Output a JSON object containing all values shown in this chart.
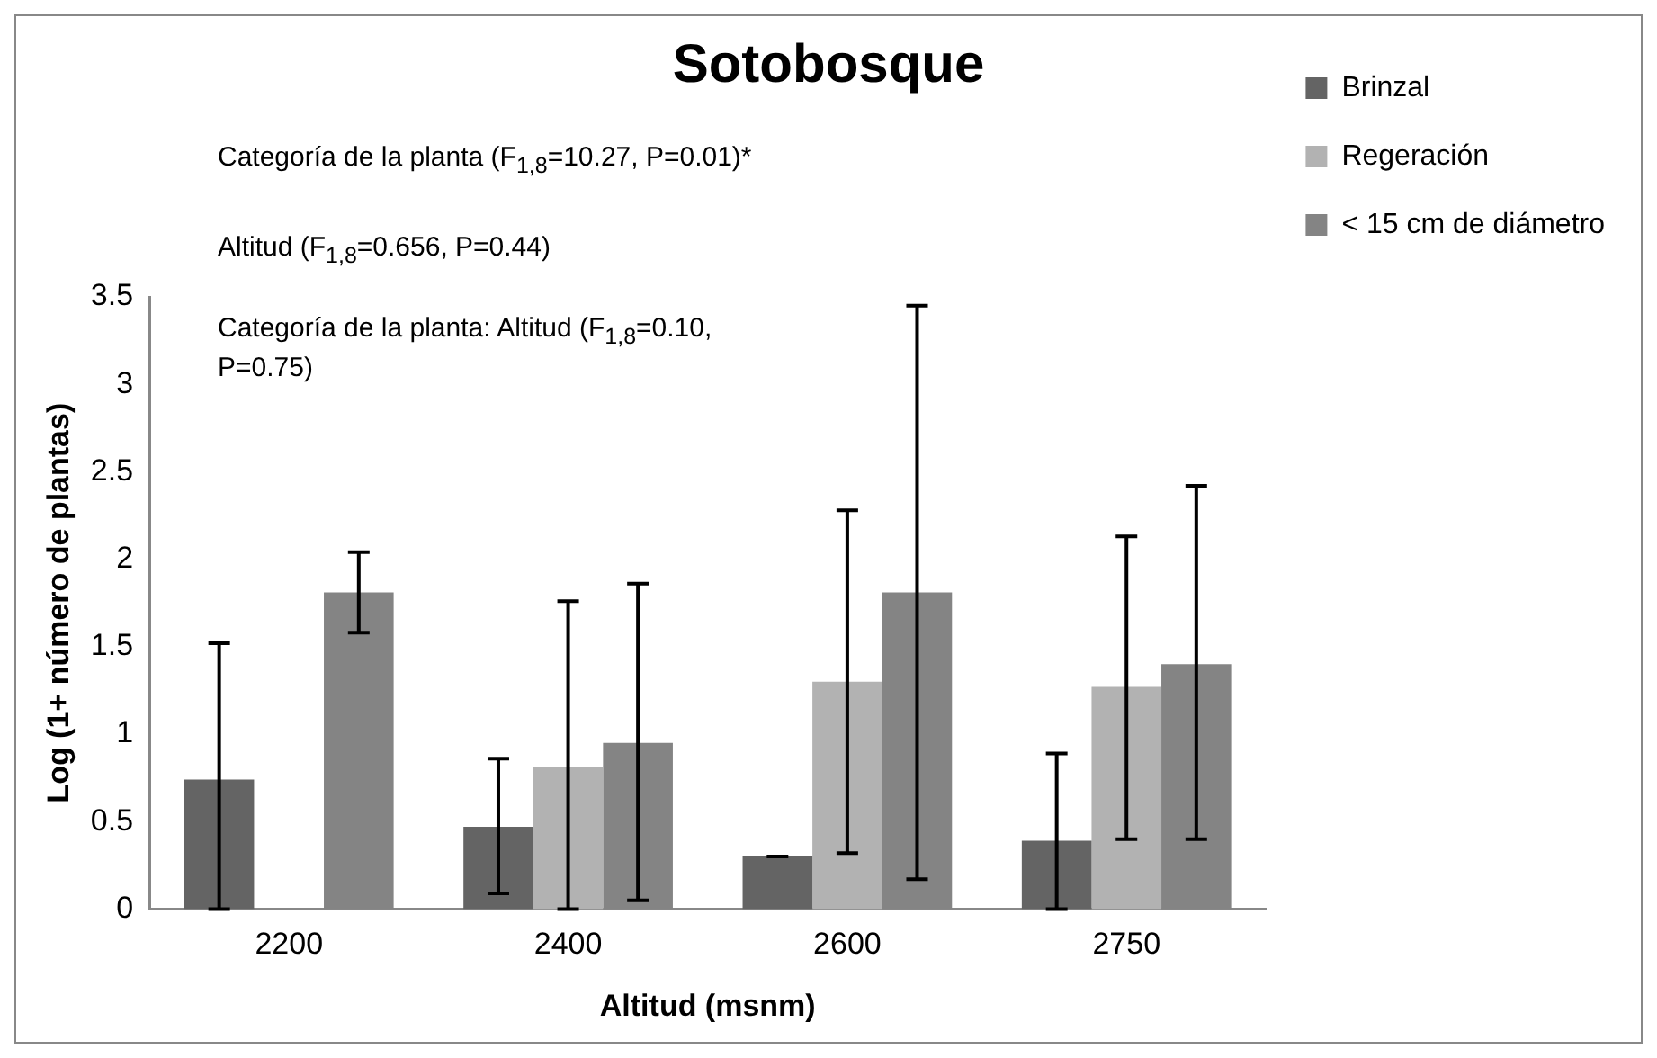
{
  "chart_data": {
    "type": "bar",
    "title": "Sotobosque",
    "xlabel": "Altitud (msnm)",
    "ylabel": "Log (1+ número de plantas)",
    "categories": [
      "2200",
      "2400",
      "2600",
      "2750"
    ],
    "series": [
      {
        "name": "Brinzal",
        "color": "#646464",
        "values": [
          0.74,
          0.47,
          0.3,
          0.39
        ],
        "errors": [
          [
            0,
            1.52
          ],
          [
            0.09,
            0.86
          ],
          [
            0.3,
            0.3
          ],
          [
            0,
            0.89
          ]
        ]
      },
      {
        "name": "Regeración",
        "color": "#b2b2b2",
        "values": [
          0,
          0.81,
          1.3,
          1.27
        ],
        "errors": [
          null,
          [
            0,
            1.76
          ],
          [
            0.32,
            2.28
          ],
          [
            0.4,
            2.13
          ]
        ]
      },
      {
        "name": "< 15 cm de diámetro",
        "color": "#848484",
        "values": [
          1.81,
          0.95,
          1.81,
          1.4
        ],
        "errors": [
          [
            1.58,
            2.04
          ],
          [
            0.05,
            1.86
          ],
          [
            0.17,
            3.45
          ],
          [
            0.4,
            2.42
          ]
        ]
      }
    ],
    "ylim": [
      0,
      3.5
    ],
    "yticks": [
      0,
      0.5,
      1,
      1.5,
      2,
      2.5,
      3,
      3.5
    ],
    "grid": false,
    "legend": "top right",
    "annotations": [
      "Categoría de la planta (F$_{1,8}$=10.27, P=0.01)*",
      "Altitud (F$_{1,8}$=0.656, P=0.44)",
      "Categoría de la planta: Altitud (F$_{1,8}$=0.10, P=0.75)"
    ]
  }
}
